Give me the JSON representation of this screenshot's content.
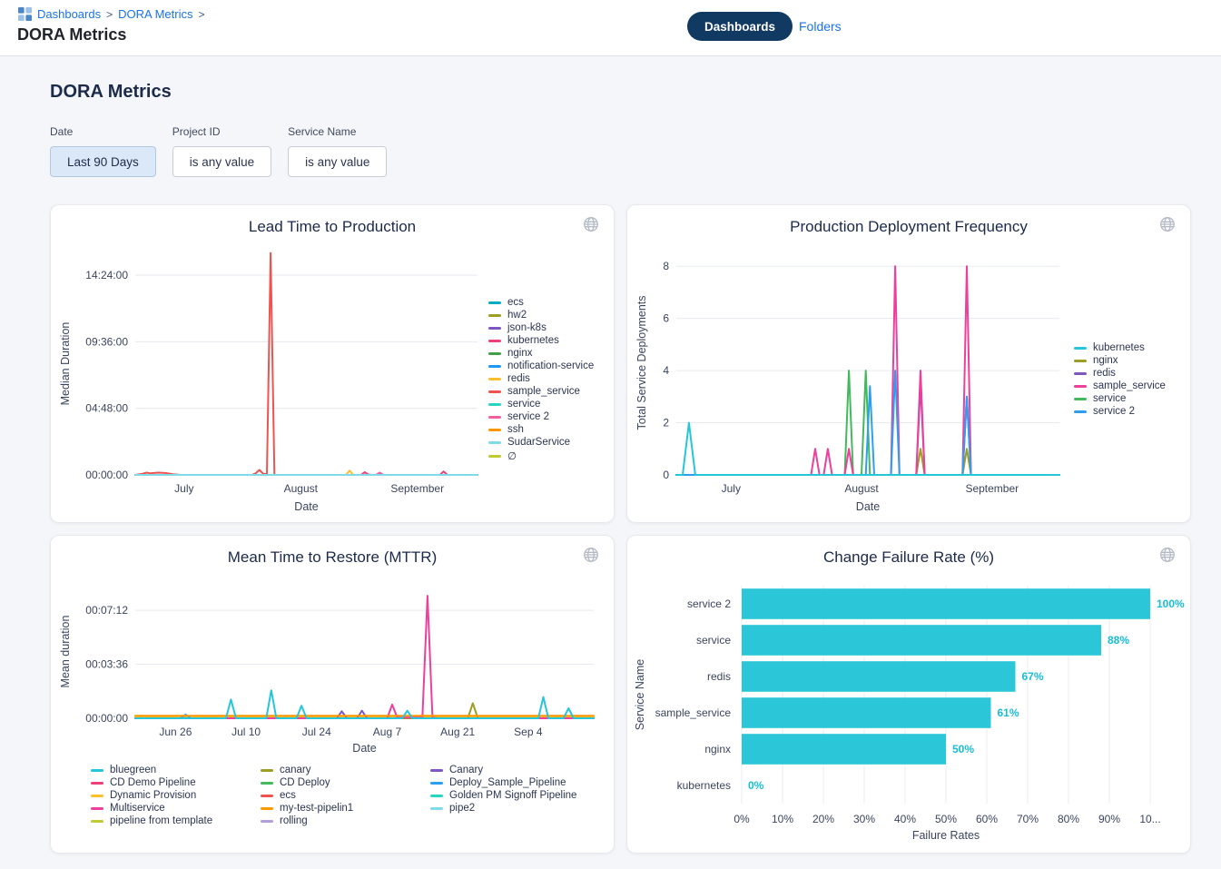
{
  "header": {
    "breadcrumb": [
      "Dashboards",
      "DORA Metrics"
    ],
    "breadcrumb_sep": ">",
    "title": "DORA Metrics",
    "tabs": {
      "dashboards": "Dashboards",
      "folders": "Folders"
    }
  },
  "main": {
    "section_title": "DORA Metrics"
  },
  "filters": [
    {
      "label": "Date",
      "value": "Last 90 Days"
    },
    {
      "label": "Project ID",
      "value": "is any value"
    },
    {
      "label": "Service Name",
      "value": "is any value"
    }
  ],
  "theme": {
    "link_blue": "#1a73e8",
    "pill_navy": "#113a63",
    "bar_cyan": "#2bc7d9",
    "value_label_cyan": "#17bdd6"
  },
  "icons": {
    "globe": "globe-icon",
    "breadcrumb_grid": "dashboards-grid-icon"
  },
  "chart_data": [
    {
      "type": "line",
      "title": "Lead Time to Production",
      "xlabel": "Date",
      "ylabel": "Median Duration",
      "legend_position": "right",
      "x_max": 91,
      "y_max": 57730,
      "layout": {
        "ml": 87,
        "mr": 6,
        "mt": 10,
        "mb": 45
      },
      "y_ticks": [
        {
          "v": 0,
          "label": "00:00:00"
        },
        {
          "v": 17280,
          "label": "04:48:00"
        },
        {
          "v": 34560,
          "label": "09:36:00"
        },
        {
          "v": 51840,
          "label": "14:24:00"
        }
      ],
      "x_ticks": [
        {
          "d": 13,
          "label": "July"
        },
        {
          "d": 44,
          "label": "August"
        },
        {
          "d": 75,
          "label": "September"
        }
      ],
      "series": [
        {
          "name": "ecs",
          "color": "#00acc1",
          "points": [
            [
              0,
              0
            ],
            [
              91,
              0
            ]
          ]
        },
        {
          "name": "hw2",
          "color": "#9e9d24",
          "points": [
            [
              0,
              0
            ],
            [
              91,
              0
            ]
          ]
        },
        {
          "name": "json-k8s",
          "color": "#7e57c2",
          "points": [
            [
              0,
              0
            ],
            [
              91,
              0
            ]
          ]
        },
        {
          "name": "kubernetes",
          "color": "#ec407a",
          "points": [
            [
              0,
              0
            ],
            [
              60,
              0
            ],
            [
              61,
              700
            ],
            [
              62,
              100
            ],
            [
              63,
              0
            ],
            [
              81,
              0
            ],
            [
              82,
              900
            ],
            [
              83,
              0
            ],
            [
              91,
              0
            ]
          ]
        },
        {
          "name": "nginx",
          "color": "#43a047",
          "points": [
            [
              0,
              0
            ],
            [
              91,
              0
            ]
          ]
        },
        {
          "name": "notification-service",
          "color": "#2196f3",
          "points": [
            [
              0,
              0
            ],
            [
              91,
              0
            ]
          ]
        },
        {
          "name": "redis",
          "color": "#fbc02d",
          "points": [
            [
              0,
              0
            ],
            [
              56,
              0
            ],
            [
              57,
              1100
            ],
            [
              58,
              0
            ],
            [
              91,
              0
            ]
          ]
        },
        {
          "name": "sample_service",
          "color": "#ef5350",
          "z": 60,
          "points": [
            [
              0,
              0
            ],
            [
              2,
              300
            ],
            [
              3,
              600
            ],
            [
              4,
              400
            ],
            [
              6,
              600
            ],
            [
              8,
              500
            ],
            [
              10,
              200
            ],
            [
              12,
              0
            ],
            [
              31,
              0
            ],
            [
              32,
              400
            ],
            [
              33,
              1300
            ],
            [
              34,
              300
            ],
            [
              35,
              200
            ],
            [
              36,
              57600
            ],
            [
              37,
              0
            ],
            [
              91,
              0
            ]
          ]
        },
        {
          "name": "service",
          "color": "#26d7c0",
          "points": [
            [
              0,
              0
            ],
            [
              91,
              0
            ]
          ]
        },
        {
          "name": "service 2",
          "color": "#f0609e",
          "points": [
            [
              0,
              0
            ],
            [
              64,
              0
            ],
            [
              65,
              600
            ],
            [
              66,
              0
            ],
            [
              91,
              0
            ]
          ]
        },
        {
          "name": "ssh",
          "color": "#ff9800",
          "points": [
            [
              0,
              0
            ],
            [
              91,
              0
            ]
          ]
        },
        {
          "name": "SudarService",
          "color": "#7fdbe8",
          "z": 99,
          "points": [
            [
              0,
              0
            ],
            [
              91,
              0
            ]
          ]
        },
        {
          "name": "∅",
          "color": "#c0ca33",
          "points": [
            [
              0,
              0
            ],
            [
              91,
              0
            ]
          ]
        }
      ]
    },
    {
      "type": "line",
      "title": "Production Deployment Frequency",
      "xlabel": "Date",
      "ylabel": "Total Service Deployments",
      "legend_position": "right",
      "x_max": 91,
      "y_max": 8.6,
      "layout": {
        "ml": 48,
        "mr": 10,
        "mt": 8,
        "mb": 45
      },
      "y_ticks": [
        {
          "v": 0,
          "label": "0"
        },
        {
          "v": 2,
          "label": "2"
        },
        {
          "v": 4,
          "label": "4"
        },
        {
          "v": 6,
          "label": "6"
        },
        {
          "v": 8,
          "label": "8"
        }
      ],
      "x_ticks": [
        {
          "d": 13,
          "label": "July"
        },
        {
          "d": 44,
          "label": "August"
        },
        {
          "d": 75,
          "label": "September"
        }
      ],
      "series": [
        {
          "name": "kubernetes",
          "color": "#26c6da",
          "z": 99,
          "points": [
            [
              0,
              0
            ],
            [
              1.5,
              0
            ],
            [
              3,
              2
            ],
            [
              4.5,
              0
            ],
            [
              91,
              0
            ]
          ]
        },
        {
          "name": "nginx",
          "color": "#9e9d24",
          "points": [
            [
              0,
              0
            ],
            [
              57,
              0
            ],
            [
              58,
              1
            ],
            [
              59,
              0
            ],
            [
              68,
              0
            ],
            [
              69,
              1
            ],
            [
              70,
              0
            ],
            [
              91,
              0
            ]
          ]
        },
        {
          "name": "redis",
          "color": "#7e57c2",
          "points": [
            [
              0,
              0
            ],
            [
              57,
              0
            ],
            [
              58,
              3.5
            ],
            [
              59,
              0
            ],
            [
              68,
              0
            ],
            [
              69,
              3
            ],
            [
              70,
              0
            ],
            [
              91,
              0
            ]
          ]
        },
        {
          "name": "sample_service",
          "color": "#ed3f9b",
          "z": 60,
          "points": [
            [
              0,
              0
            ],
            [
              32,
              0
            ],
            [
              33,
              1
            ],
            [
              34,
              0
            ],
            [
              35,
              0
            ],
            [
              36,
              1
            ],
            [
              37,
              0
            ],
            [
              40,
              0
            ],
            [
              41,
              1
            ],
            [
              42,
              0
            ],
            [
              51,
              0
            ],
            [
              52,
              8
            ],
            [
              53,
              0
            ],
            [
              57,
              0
            ],
            [
              58,
              4
            ],
            [
              59,
              0
            ],
            [
              68,
              0
            ],
            [
              69,
              8
            ],
            [
              70,
              0
            ],
            [
              91,
              0
            ]
          ]
        },
        {
          "name": "service",
          "color": "#43b95e",
          "points": [
            [
              0,
              0
            ],
            [
              40,
              0
            ],
            [
              41,
              4
            ],
            [
              42,
              0
            ],
            [
              44,
              0
            ],
            [
              45,
              4
            ],
            [
              46,
              0
            ],
            [
              91,
              0
            ]
          ]
        },
        {
          "name": "service 2",
          "color": "#2e9ff0",
          "z": 70,
          "points": [
            [
              0,
              0
            ],
            [
              45,
              0
            ],
            [
              46,
              3.4
            ],
            [
              47,
              0
            ],
            [
              51,
              0
            ],
            [
              52,
              4
            ],
            [
              53,
              0
            ],
            [
              68,
              0
            ],
            [
              69,
              3
            ],
            [
              70,
              0
            ],
            [
              91,
              0
            ]
          ]
        }
      ]
    },
    {
      "type": "line",
      "title": "Mean Time to Restore (MTTR)",
      "xlabel": "Date",
      "ylabel": "Mean duration",
      "legend_position": "bottom",
      "legend_columns": [
        5,
        5,
        4
      ],
      "x_max": 91,
      "y_max": 534,
      "layout": {
        "ml": 87,
        "mr": 18,
        "mt": 10,
        "mb": 43
      },
      "y_ticks": [
        {
          "v": 0,
          "label": "00:00:00"
        },
        {
          "v": 216,
          "label": "00:03:36"
        },
        {
          "v": 432,
          "label": "00:07:12"
        }
      ],
      "x_ticks": [
        {
          "d": 8,
          "label": "Jun 26"
        },
        {
          "d": 22,
          "label": "Jul 10"
        },
        {
          "d": 36,
          "label": "Jul 24"
        },
        {
          "d": 50,
          "label": "Aug 7"
        },
        {
          "d": 64,
          "label": "Aug 21"
        },
        {
          "d": 78,
          "label": "Sep 4"
        }
      ],
      "series": [
        {
          "name": "bluegreen",
          "color": "#26c6da",
          "z": 99,
          "points": [
            [
              0,
              0
            ],
            [
              18,
              0
            ],
            [
              19,
              75
            ],
            [
              20,
              0
            ],
            [
              26,
              0
            ],
            [
              27,
              112
            ],
            [
              28,
              0
            ],
            [
              32,
              0
            ],
            [
              33,
              50
            ],
            [
              34,
              0
            ],
            [
              53,
              0
            ],
            [
              54,
              30
            ],
            [
              55,
              0
            ],
            [
              80,
              0
            ],
            [
              81,
              85
            ],
            [
              82,
              0
            ],
            [
              85,
              0
            ],
            [
              86,
              40
            ],
            [
              87,
              0
            ],
            [
              91,
              0
            ]
          ]
        },
        {
          "name": "CD Demo Pipeline",
          "color": "#ec407a",
          "points": [
            [
              0,
              0
            ],
            [
              91,
              0
            ]
          ]
        },
        {
          "name": "Dynamic Provision",
          "color": "#fbc02d",
          "points": [
            [
              0,
              5
            ],
            [
              91,
              5
            ]
          ]
        },
        {
          "name": "Multiservice",
          "color": "#ed3f9b",
          "z": 60,
          "points": [
            [
              0,
              0
            ],
            [
              50,
              0
            ],
            [
              51,
              55
            ],
            [
              52,
              3
            ],
            [
              57,
              3
            ],
            [
              58,
              490
            ],
            [
              59,
              3
            ],
            [
              60,
              0
            ],
            [
              91,
              0
            ]
          ]
        },
        {
          "name": "pipeline from template",
          "color": "#c0ca33",
          "points": [
            [
              0,
              0
            ],
            [
              91,
              0
            ]
          ]
        },
        {
          "name": "canary",
          "color": "#9e9d24",
          "z": 55,
          "points": [
            [
              0,
              0
            ],
            [
              66,
              0
            ],
            [
              67,
              60
            ],
            [
              68,
              0
            ],
            [
              91,
              0
            ]
          ]
        },
        {
          "name": "CD Deploy",
          "color": "#43b95e",
          "points": [
            [
              0,
              0
            ],
            [
              91,
              0
            ]
          ]
        },
        {
          "name": "ecs",
          "color": "#ef5350",
          "points": [
            [
              0,
              0
            ],
            [
              91,
              0
            ]
          ]
        },
        {
          "name": "my-test-pipelin1",
          "color": "#ff9800",
          "z": 90,
          "points": [
            [
              0,
              10
            ],
            [
              91,
              10
            ]
          ]
        },
        {
          "name": "rolling",
          "color": "#b39ddb",
          "points": [
            [
              0,
              0
            ],
            [
              91,
              0
            ]
          ]
        },
        {
          "name": "Canary",
          "color": "#7e57c2",
          "z": 50,
          "points": [
            [
              0,
              0
            ],
            [
              40,
              0
            ],
            [
              41,
              28
            ],
            [
              42,
              0
            ],
            [
              44,
              0
            ],
            [
              45,
              30
            ],
            [
              46,
              0
            ],
            [
              91,
              0
            ]
          ]
        },
        {
          "name": "Deploy_Sample_Pipeline",
          "color": "#2e9ff0",
          "points": [
            [
              0,
              0
            ],
            [
              9,
              0
            ],
            [
              10,
              15
            ],
            [
              11,
              0
            ],
            [
              91,
              0
            ]
          ]
        },
        {
          "name": "Golden PM Signoff Pipeline",
          "color": "#26d7c0",
          "points": [
            [
              0,
              0
            ],
            [
              91,
              0
            ]
          ]
        },
        {
          "name": "pipe2",
          "color": "#7fdbe8",
          "points": [
            [
              0,
              0
            ],
            [
              91,
              0
            ]
          ]
        }
      ]
    },
    {
      "type": "bar",
      "title": "Change Failure Rate (%)",
      "xlabel": "Failure Rates",
      "ylabel": "Service Name",
      "x_max": 100,
      "layout": {
        "ml": 122,
        "mr": 38,
        "mt": 15,
        "mb": 45
      },
      "categories": [
        "service 2",
        "service",
        "redis",
        "sample_service",
        "nginx",
        "kubernetes"
      ],
      "values": [
        100,
        88,
        67,
        61,
        50,
        0
      ],
      "value_labels": [
        "100%",
        "88%",
        "67%",
        "61%",
        "50%",
        "0%"
      ],
      "x_ticks": [
        "0%",
        "10%",
        "20%",
        "30%",
        "40%",
        "50%",
        "60%",
        "70%",
        "80%",
        "90%",
        "10..."
      ],
      "bar_color": "#2bc7d9"
    }
  ]
}
